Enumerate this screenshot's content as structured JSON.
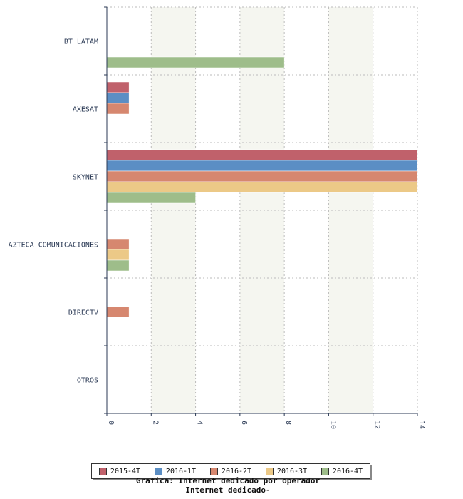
{
  "chart_data": {
    "type": "bar",
    "orientation": "horizontal",
    "categories": [
      "BT LATAM",
      "AXESAT",
      "SKYNET",
      "AZTECA COMUNICACIONES",
      "DIRECTV",
      "OTROS"
    ],
    "series": [
      {
        "name": "2015-4T",
        "color": "#c0616b",
        "values": [
          0,
          1,
          14,
          0,
          0,
          0
        ]
      },
      {
        "name": "2016-1T",
        "color": "#5b8ec4",
        "values": [
          0,
          1,
          14,
          0,
          0,
          0
        ]
      },
      {
        "name": "2016-2T",
        "color": "#d6876f",
        "values": [
          0,
          1,
          14,
          1,
          1,
          0
        ]
      },
      {
        "name": "2016-3T",
        "color": "#ecc987",
        "values": [
          0,
          0,
          14,
          1,
          0,
          0
        ]
      },
      {
        "name": "2016-4T",
        "color": "#9ebd8a",
        "values": [
          8,
          0,
          4,
          1,
          0,
          0
        ]
      }
    ],
    "xlim": [
      0,
      14
    ],
    "x_ticks": [
      "0",
      "2",
      "4",
      "6",
      "8",
      "10",
      "12",
      "14"
    ],
    "grid": true,
    "legend_position": "bottom",
    "title": "Grafica: Internet dedicado por operador",
    "subtitle": "Internet dedicado-"
  }
}
